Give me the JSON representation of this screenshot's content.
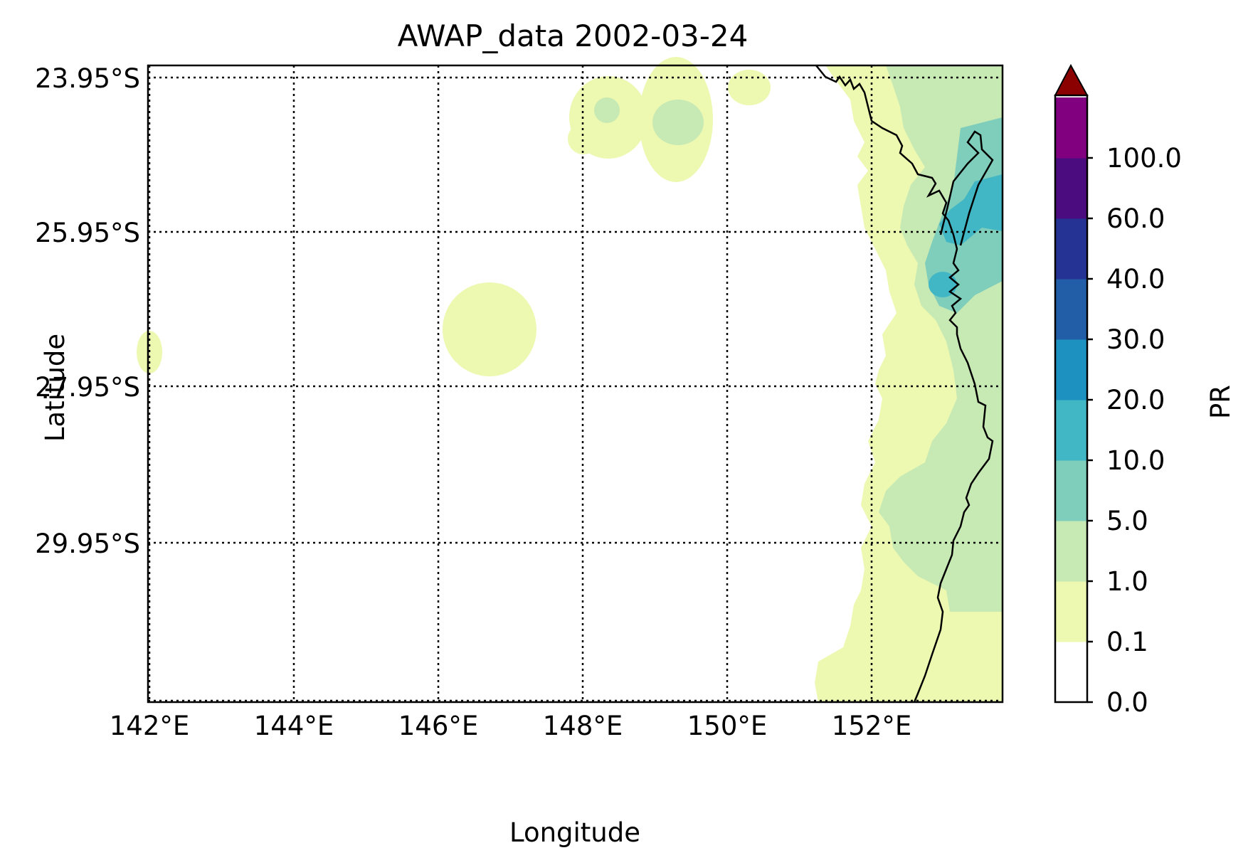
{
  "title": "AWAP_data 2002-03-24",
  "xlabel": "Longitude",
  "ylabel": "Latitude",
  "x_ticks": [
    "142°E",
    "144°E",
    "146°E",
    "148°E",
    "150°E",
    "152°E"
  ],
  "y_ticks": [
    "23.95°S",
    "25.95°S",
    "27.95°S",
    "29.95°S"
  ],
  "colorbar": {
    "label": "PR",
    "ticks": [
      "0.0",
      "0.1",
      "1.0",
      "5.0",
      "10.0",
      "20.0",
      "30.0",
      "40.0",
      "60.0",
      "100.0"
    ],
    "colors": [
      "#ffffff",
      "#edf8b1",
      "#c7e9b4",
      "#7fcdbb",
      "#41b6c4",
      "#1d91c0",
      "#225ea8",
      "#253494",
      "#4b0c7f",
      "#800080"
    ],
    "extend_color": "#8b0000"
  },
  "chart_data": {
    "type": "heatmap",
    "title": "AWAP_data 2002-03-24",
    "xlabel": "Longitude",
    "ylabel": "Latitude",
    "xlim": [
      142,
      153.8
    ],
    "ylim": [
      -32.0,
      -23.8
    ],
    "x_tick_values": [
      142,
      144,
      146,
      148,
      150,
      152
    ],
    "y_tick_values": [
      -23.95,
      -25.95,
      -27.95,
      -29.95
    ],
    "grid": true,
    "colorbar_label": "PR",
    "levels": [
      0.0,
      0.1,
      1.0,
      5.0,
      10.0,
      20.0,
      30.0,
      40.0,
      60.0,
      100.0
    ],
    "extend": "max"
  }
}
